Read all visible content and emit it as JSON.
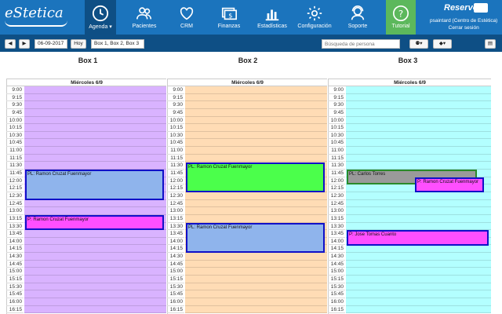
{
  "nav": {
    "logo": "eStetica",
    "items": [
      {
        "label": "Agenda ▾",
        "icon": "clock-icon"
      },
      {
        "label": "Pacientes",
        "icon": "users-icon"
      },
      {
        "label": "CRM",
        "icon": "heart-icon"
      },
      {
        "label": "Finanzas",
        "icon": "money-icon"
      },
      {
        "label": "Estadísticas",
        "icon": "bar-chart-icon"
      },
      {
        "label": "Configuración",
        "icon": "gear-icon"
      },
      {
        "label": "Soporte",
        "icon": "support-icon"
      },
      {
        "label": "Tutorial",
        "icon": "help-icon"
      }
    ],
    "reserva": "Reservo",
    "user_line1": "psaintard (Centro de Estética)",
    "user_line2": "Cerrar sesión"
  },
  "toolbar": {
    "prev": "◀",
    "next": "▶",
    "date": "06-09-2017",
    "today": "Hoy",
    "boxes_selected": "Box 1, Box 2, Box 3",
    "search_placeholder": "Búsqueda de persona"
  },
  "calendar": {
    "day_label": "Miércoles 6/9",
    "boxes": [
      "Box 1",
      "Box 2",
      "Box 3"
    ],
    "times": [
      "9:00",
      "9:15",
      "9:30",
      "9:45",
      "10:00",
      "10:15",
      "10:30",
      "10:45",
      "11:00",
      "11:15",
      "11:30",
      "11:45",
      "12:00",
      "12:15",
      "12:30",
      "12:45",
      "13:00",
      "13:15",
      "13:30",
      "13:45",
      "14:00",
      "14:15",
      "14:30",
      "14:45",
      "15:00",
      "15:15",
      "15:30",
      "15:45",
      "16:00",
      "16:15"
    ],
    "colors": {
      "box1": "#d9b3ff",
      "box2": "#ffdcb5",
      "box3": "#b3ffff"
    },
    "appointments": [
      {
        "box": 1,
        "text": "PL: Ramon Cruzat Fuenmayor",
        "start": "11:45",
        "end": "12:45",
        "color": "#8fb4ec"
      },
      {
        "box": 1,
        "text": "P: Ramon Cruzat Fuenmayor",
        "start": "13:15",
        "end": "13:45",
        "color": "#ff4fff"
      },
      {
        "box": 2,
        "text": "PL: Ramon Cruzat Fuenmayor",
        "start": "11:30",
        "end": "12:30",
        "color": "#4bff4b"
      },
      {
        "box": 2,
        "text": "PL: Ramon Cruzat Fuenmayor",
        "start": "13:30",
        "end": "14:30",
        "color": "#8fb4ec"
      },
      {
        "box": 3,
        "text": "PL: Carlos Torres",
        "start": "11:45",
        "end": "12:15",
        "color": "#9a9a9a"
      },
      {
        "box": 3,
        "text": "P: Ramon Cruzat Fuenmayor",
        "start": "12:00",
        "end": "12:30",
        "color": "#ff4fff"
      },
      {
        "box": 3,
        "text": "P: Jose Tomas Cuanto",
        "start": "13:45",
        "end": "14:15",
        "color": "#ff4fff"
      }
    ]
  }
}
